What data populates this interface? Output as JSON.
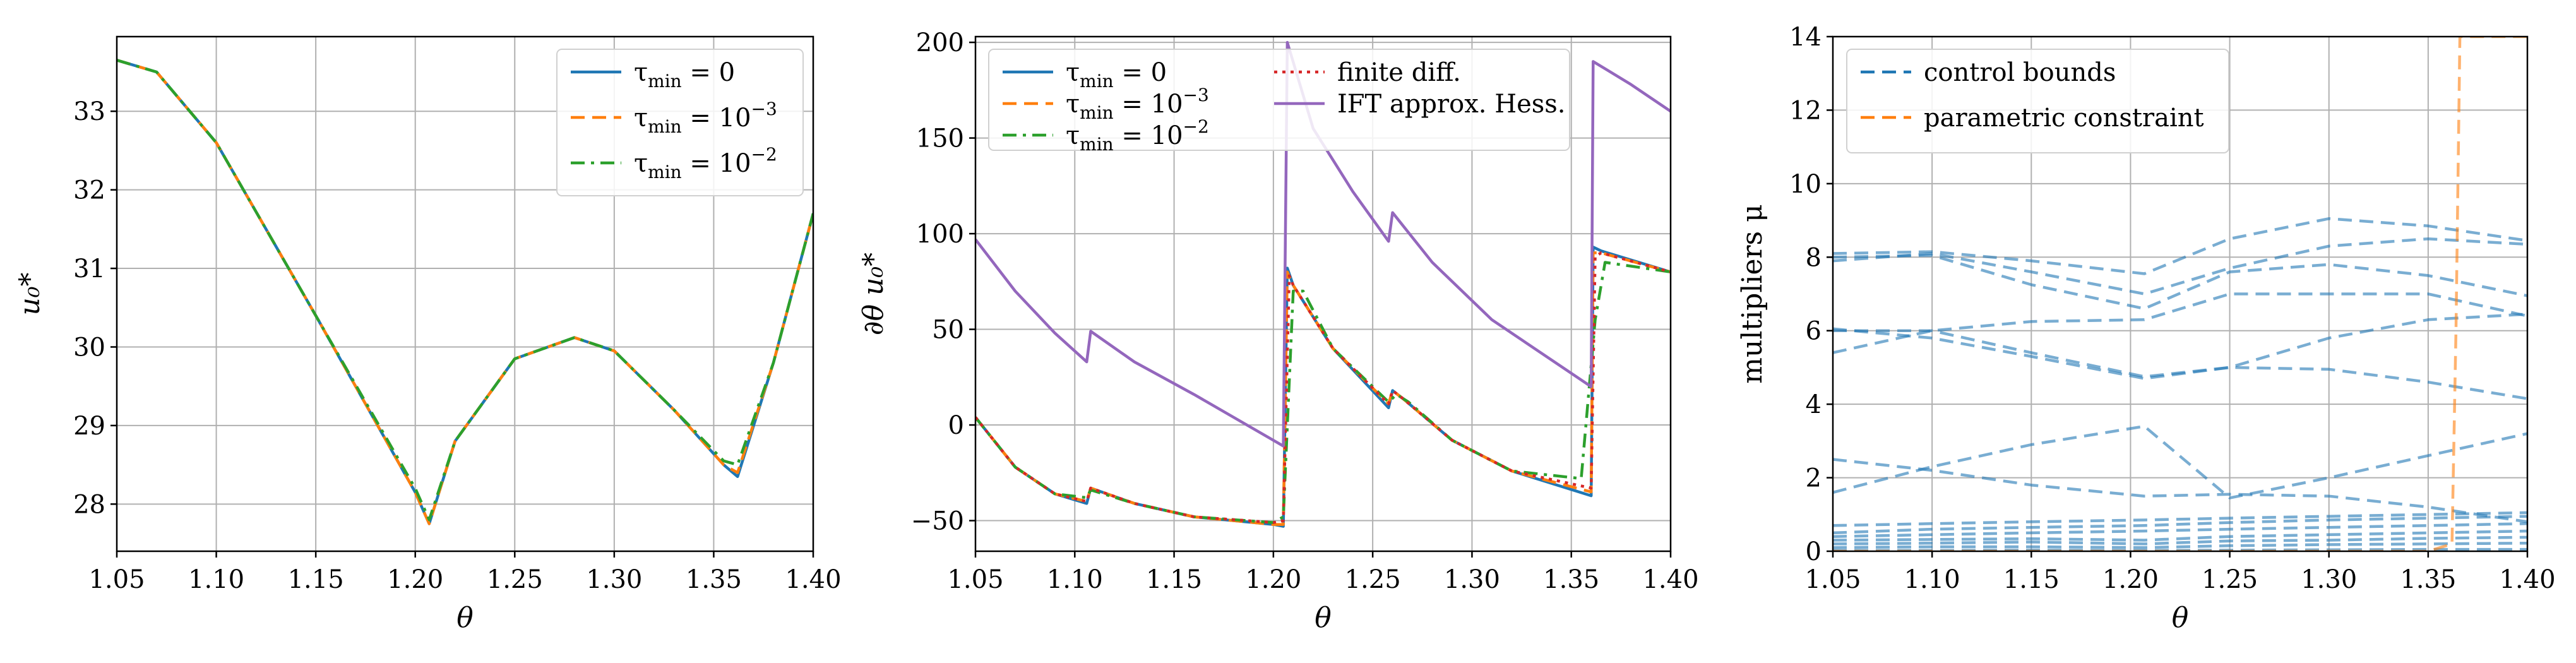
{
  "colors": {
    "blue": "#1f77b4",
    "orange": "#ff7f0e",
    "green": "#2ca02c",
    "red": "#d62728",
    "purple": "#9467bd",
    "grid": "#b0b0b0"
  },
  "chart_data": [
    {
      "type": "line",
      "title": "",
      "xlabel": "θ",
      "ylabel": "u₀*",
      "xlim": [
        1.05,
        1.4
      ],
      "ylim": [
        27.4,
        33.95
      ],
      "xticks": [
        1.05,
        1.1,
        1.15,
        1.2,
        1.25,
        1.3,
        1.35,
        1.4
      ],
      "xtick_labels": [
        "1.05",
        "1.10",
        "1.15",
        "1.20",
        "1.25",
        "1.30",
        "1.35",
        "1.40"
      ],
      "yticks": [
        28,
        29,
        30,
        31,
        32,
        33
      ],
      "ytick_labels": [
        "28",
        "29",
        "30",
        "31",
        "32",
        "33"
      ],
      "grid": true,
      "legend": "top-right",
      "series": [
        {
          "name": "τmin = 0",
          "color": "#1f77b4",
          "dash": "solid",
          "x": [
            1.05,
            1.07,
            1.1,
            1.15,
            1.2,
            1.207,
            1.22,
            1.25,
            1.28,
            1.3,
            1.33,
            1.355,
            1.362,
            1.38,
            1.4
          ],
          "y": [
            33.65,
            33.5,
            32.6,
            30.4,
            28.15,
            27.75,
            28.8,
            29.85,
            30.12,
            29.95,
            29.2,
            28.5,
            28.35,
            29.8,
            31.7
          ]
        },
        {
          "name": "τmin = 10⁻³",
          "color": "#ff7f0e",
          "dash": "dashed",
          "x": [
            1.05,
            1.07,
            1.1,
            1.15,
            1.2,
            1.207,
            1.22,
            1.25,
            1.28,
            1.3,
            1.33,
            1.355,
            1.362,
            1.38,
            1.4
          ],
          "y": [
            33.65,
            33.5,
            32.6,
            30.4,
            28.15,
            27.75,
            28.8,
            29.85,
            30.12,
            29.95,
            29.2,
            28.5,
            28.4,
            29.8,
            31.7
          ]
        },
        {
          "name": "τmin = 10⁻²",
          "color": "#2ca02c",
          "dash": "dashdot",
          "x": [
            1.05,
            1.07,
            1.1,
            1.15,
            1.2,
            1.207,
            1.22,
            1.25,
            1.28,
            1.3,
            1.33,
            1.355,
            1.362,
            1.38,
            1.4
          ],
          "y": [
            33.65,
            33.5,
            32.6,
            30.4,
            28.2,
            27.8,
            28.8,
            29.85,
            30.12,
            29.95,
            29.2,
            28.55,
            28.5,
            29.8,
            31.7
          ]
        }
      ]
    },
    {
      "type": "line",
      "title": "",
      "xlabel": "θ",
      "ylabel": "∂θ u₀*",
      "xlim": [
        1.05,
        1.4
      ],
      "ylim": [
        -66,
        203
      ],
      "xticks": [
        1.05,
        1.1,
        1.15,
        1.2,
        1.25,
        1.3,
        1.35,
        1.4
      ],
      "xtick_labels": [
        "1.05",
        "1.10",
        "1.15",
        "1.20",
        "1.25",
        "1.30",
        "1.35",
        "1.40"
      ],
      "yticks": [
        -50,
        0,
        50,
        100,
        150,
        200
      ],
      "ytick_labels": [
        "−50",
        "0",
        "50",
        "100",
        "150",
        "200"
      ],
      "grid": true,
      "legend": "top-left",
      "series": [
        {
          "name": "τmin = 0",
          "color": "#1f77b4",
          "dash": "solid",
          "x": [
            1.05,
            1.07,
            1.09,
            1.106,
            1.108,
            1.13,
            1.16,
            1.2,
            1.205,
            1.207,
            1.21,
            1.23,
            1.258,
            1.26,
            1.265,
            1.29,
            1.32,
            1.36,
            1.361,
            1.365,
            1.4
          ],
          "y": [
            4,
            -22,
            -36,
            -41,
            -33,
            -41,
            -48,
            -52,
            -53,
            82,
            73,
            40,
            9,
            18,
            14,
            -8,
            -24,
            -37,
            93,
            91,
            80
          ]
        },
        {
          "name": "τmin = 10⁻³",
          "color": "#ff7f0e",
          "dash": "dashed",
          "x": [
            1.05,
            1.07,
            1.09,
            1.106,
            1.108,
            1.13,
            1.16,
            1.2,
            1.205,
            1.207,
            1.21,
            1.23,
            1.258,
            1.26,
            1.265,
            1.29,
            1.32,
            1.36,
            1.361,
            1.365,
            1.4
          ],
          "y": [
            4,
            -22,
            -36,
            -40,
            -33,
            -41,
            -48,
            -52,
            -52,
            80,
            73,
            40,
            11,
            18,
            14,
            -8,
            -24,
            -35,
            90,
            90,
            80
          ]
        },
        {
          "name": "τmin = 10⁻²",
          "color": "#2ca02c",
          "dash": "dashdot",
          "x": [
            1.05,
            1.07,
            1.09,
            1.106,
            1.108,
            1.13,
            1.16,
            1.2,
            1.205,
            1.21,
            1.215,
            1.23,
            1.258,
            1.262,
            1.268,
            1.29,
            1.32,
            1.355,
            1.362,
            1.367,
            1.4
          ],
          "y": [
            4,
            -22,
            -36,
            -38,
            -34,
            -41,
            -48,
            -51,
            -48,
            70,
            70,
            40,
            12,
            16,
            12,
            -8,
            -24,
            -28,
            55,
            85,
            80
          ]
        },
        {
          "name": "finite diff.",
          "color": "#d62728",
          "dash": "dotted",
          "x": [
            1.05,
            1.07,
            1.09,
            1.106,
            1.108,
            1.13,
            1.16,
            1.2,
            1.205,
            1.208,
            1.21,
            1.23,
            1.258,
            1.26,
            1.265,
            1.29,
            1.32,
            1.36,
            1.362,
            1.365,
            1.4
          ],
          "y": [
            4,
            -22,
            -36,
            -40,
            -33,
            -41,
            -48,
            -51,
            -50,
            78,
            73,
            40,
            11,
            18,
            14,
            -8,
            -24,
            -33,
            88,
            90,
            80
          ]
        },
        {
          "name": "IFT approx. Hess.",
          "color": "#9467bd",
          "dash": "solid",
          "x": [
            1.05,
            1.07,
            1.09,
            1.106,
            1.108,
            1.13,
            1.16,
            1.2,
            1.205,
            1.207,
            1.22,
            1.24,
            1.258,
            1.26,
            1.28,
            1.31,
            1.36,
            1.361,
            1.38,
            1.4
          ],
          "y": [
            97,
            70,
            48,
            33,
            49,
            33,
            16,
            -8,
            -11,
            200,
            155,
            122,
            96,
            111,
            85,
            55,
            20,
            190,
            178,
            164
          ]
        }
      ]
    },
    {
      "type": "line",
      "title": "",
      "xlabel": "θ",
      "ylabel": "multipliers μ",
      "xlim": [
        1.05,
        1.4
      ],
      "ylim": [
        0,
        14
      ],
      "xticks": [
        1.05,
        1.1,
        1.15,
        1.2,
        1.25,
        1.3,
        1.35,
        1.4
      ],
      "xtick_labels": [
        "1.05",
        "1.10",
        "1.15",
        "1.20",
        "1.25",
        "1.30",
        "1.35",
        "1.40"
      ],
      "yticks": [
        0,
        2,
        4,
        6,
        8,
        10,
        12,
        14
      ],
      "ytick_labels": [
        "0",
        "2",
        "4",
        "6",
        "8",
        "10",
        "12",
        "14"
      ],
      "grid": true,
      "legend": "top-left",
      "series": [
        {
          "name": "control bounds",
          "color": "#1f77b4",
          "dash": "dashed",
          "opacity": 0.6,
          "x": [
            1.05,
            1.1,
            1.15,
            1.207,
            1.25,
            1.3,
            1.35,
            1.4
          ],
          "y": [
            8.1,
            8.15,
            7.9,
            7.55,
            8.5,
            9.05,
            8.85,
            8.45
          ]
        },
        {
          "name": "",
          "color": "#1f77b4",
          "dash": "dashed",
          "opacity": 0.6,
          "x": [
            1.05,
            1.1,
            1.15,
            1.207,
            1.25,
            1.3,
            1.35,
            1.4
          ],
          "y": [
            7.9,
            8.1,
            7.6,
            7.0,
            7.7,
            8.3,
            8.5,
            8.35
          ]
        },
        {
          "name": "",
          "color": "#1f77b4",
          "dash": "dashed",
          "opacity": 0.6,
          "x": [
            1.05,
            1.1,
            1.15,
            1.207,
            1.25,
            1.3,
            1.35,
            1.4
          ],
          "y": [
            8.0,
            8.05,
            7.25,
            6.6,
            7.6,
            7.8,
            7.5,
            6.95
          ]
        },
        {
          "name": "",
          "color": "#1f77b4",
          "dash": "dashed",
          "opacity": 0.6,
          "x": [
            1.05,
            1.1,
            1.15,
            1.207,
            1.25,
            1.3,
            1.35,
            1.4
          ],
          "y": [
            5.4,
            6.0,
            6.25,
            6.3,
            7.0,
            7.0,
            7.0,
            6.4
          ]
        },
        {
          "name": "",
          "color": "#1f77b4",
          "dash": "dashed",
          "opacity": 0.6,
          "x": [
            1.05,
            1.1,
            1.15,
            1.207,
            1.25,
            1.3,
            1.35,
            1.4
          ],
          "y": [
            6.05,
            5.8,
            5.3,
            4.7,
            5.0,
            5.8,
            6.3,
            6.45
          ]
        },
        {
          "name": "",
          "color": "#1f77b4",
          "dash": "dashed",
          "opacity": 0.6,
          "x": [
            1.05,
            1.1,
            1.15,
            1.207,
            1.25,
            1.3,
            1.35,
            1.4
          ],
          "y": [
            6.0,
            6.0,
            5.4,
            4.75,
            5.0,
            4.95,
            4.6,
            4.15
          ]
        },
        {
          "name": "",
          "color": "#1f77b4",
          "dash": "dashed",
          "opacity": 0.6,
          "x": [
            1.05,
            1.1,
            1.15,
            1.207,
            1.25,
            1.3,
            1.35,
            1.4
          ],
          "y": [
            1.6,
            2.3,
            2.9,
            3.4,
            1.45,
            2.0,
            2.6,
            3.2
          ]
        },
        {
          "name": "",
          "color": "#1f77b4",
          "dash": "dashed",
          "opacity": 0.6,
          "x": [
            1.05,
            1.1,
            1.15,
            1.207,
            1.25,
            1.3,
            1.35,
            1.4
          ],
          "y": [
            2.5,
            2.2,
            1.8,
            1.5,
            1.55,
            1.5,
            1.2,
            0.8
          ]
        },
        {
          "name": "",
          "color": "#1f77b4",
          "dash": "dashed",
          "opacity": 0.6,
          "x": [
            1.05,
            1.1,
            1.15,
            1.207,
            1.25,
            1.3,
            1.35,
            1.4
          ],
          "y": [
            0.7,
            0.75,
            0.8,
            0.85,
            0.9,
            0.95,
            1.0,
            1.05
          ]
        },
        {
          "name": "",
          "color": "#1f77b4",
          "dash": "dashed",
          "opacity": 0.6,
          "x": [
            1.05,
            1.1,
            1.15,
            1.207,
            1.25,
            1.3,
            1.35,
            1.4
          ],
          "y": [
            0.5,
            0.6,
            0.65,
            0.7,
            0.78,
            0.85,
            0.9,
            0.95
          ]
        },
        {
          "name": "",
          "color": "#1f77b4",
          "dash": "dashed",
          "opacity": 0.6,
          "x": [
            1.05,
            1.1,
            1.15,
            1.207,
            1.25,
            1.3,
            1.35,
            1.4
          ],
          "y": [
            0.4,
            0.45,
            0.5,
            0.55,
            0.6,
            0.65,
            0.7,
            0.75
          ]
        },
        {
          "name": "",
          "color": "#1f77b4",
          "dash": "dashed",
          "opacity": 0.6,
          "x": [
            1.05,
            1.1,
            1.15,
            1.207,
            1.25,
            1.3,
            1.35,
            1.4
          ],
          "y": [
            0.3,
            0.32,
            0.34,
            0.3,
            0.4,
            0.45,
            0.5,
            0.55
          ]
        },
        {
          "name": "",
          "color": "#1f77b4",
          "dash": "dashed",
          "opacity": 0.6,
          "x": [
            1.05,
            1.1,
            1.15,
            1.207,
            1.25,
            1.3,
            1.35,
            1.4
          ],
          "y": [
            0.2,
            0.22,
            0.25,
            0.2,
            0.28,
            0.3,
            0.35,
            0.38
          ]
        },
        {
          "name": "",
          "color": "#1f77b4",
          "dash": "dashed",
          "opacity": 0.6,
          "x": [
            1.05,
            1.1,
            1.15,
            1.207,
            1.25,
            1.3,
            1.35,
            1.4
          ],
          "y": [
            0.1,
            0.12,
            0.12,
            0.1,
            0.15,
            0.18,
            0.2,
            0.22
          ]
        },
        {
          "name": "",
          "color": "#1f77b4",
          "dash": "dashed",
          "opacity": 0.6,
          "x": [
            1.05,
            1.1,
            1.15,
            1.207,
            1.25,
            1.3,
            1.35,
            1.4
          ],
          "y": [
            0.02,
            0.02,
            0.03,
            0.02,
            0.03,
            0.04,
            0.05,
            0.05
          ]
        },
        {
          "name": "parametric constraint",
          "color": "#ff7f0e",
          "dash": "dashed",
          "opacity": 0.6,
          "x": [
            1.05,
            1.35,
            1.362,
            1.364,
            1.366,
            1.4
          ],
          "y": [
            0,
            0,
            0.2,
            6,
            14,
            14
          ]
        }
      ]
    }
  ],
  "legends": [
    {
      "entries": [
        {
          "prefix": "τ",
          "sub": "min",
          "eq": " = 0",
          "sup": ""
        },
        {
          "prefix": "τ",
          "sub": "min",
          "eq": " = 10",
          "sup": "−3"
        },
        {
          "prefix": "τ",
          "sub": "min",
          "eq": " = 10",
          "sup": "−2"
        }
      ]
    },
    {
      "entries": [
        {
          "prefix": "τ",
          "sub": "min",
          "eq": " = 0",
          "sup": ""
        },
        {
          "prefix": "τ",
          "sub": "min",
          "eq": " = 10",
          "sup": "−3"
        },
        {
          "prefix": "τ",
          "sub": "min",
          "eq": " = 10",
          "sup": "−2"
        },
        {
          "prefix": "finite diff.",
          "sub": "",
          "eq": "",
          "sup": ""
        },
        {
          "prefix": "IFT approx. Hess.",
          "sub": "",
          "eq": "",
          "sup": ""
        }
      ]
    },
    {
      "entries": [
        {
          "prefix": "control bounds",
          "sub": "",
          "eq": "",
          "sup": ""
        },
        {
          "prefix": "parametric constraint",
          "sub": "",
          "eq": "",
          "sup": ""
        }
      ]
    }
  ]
}
